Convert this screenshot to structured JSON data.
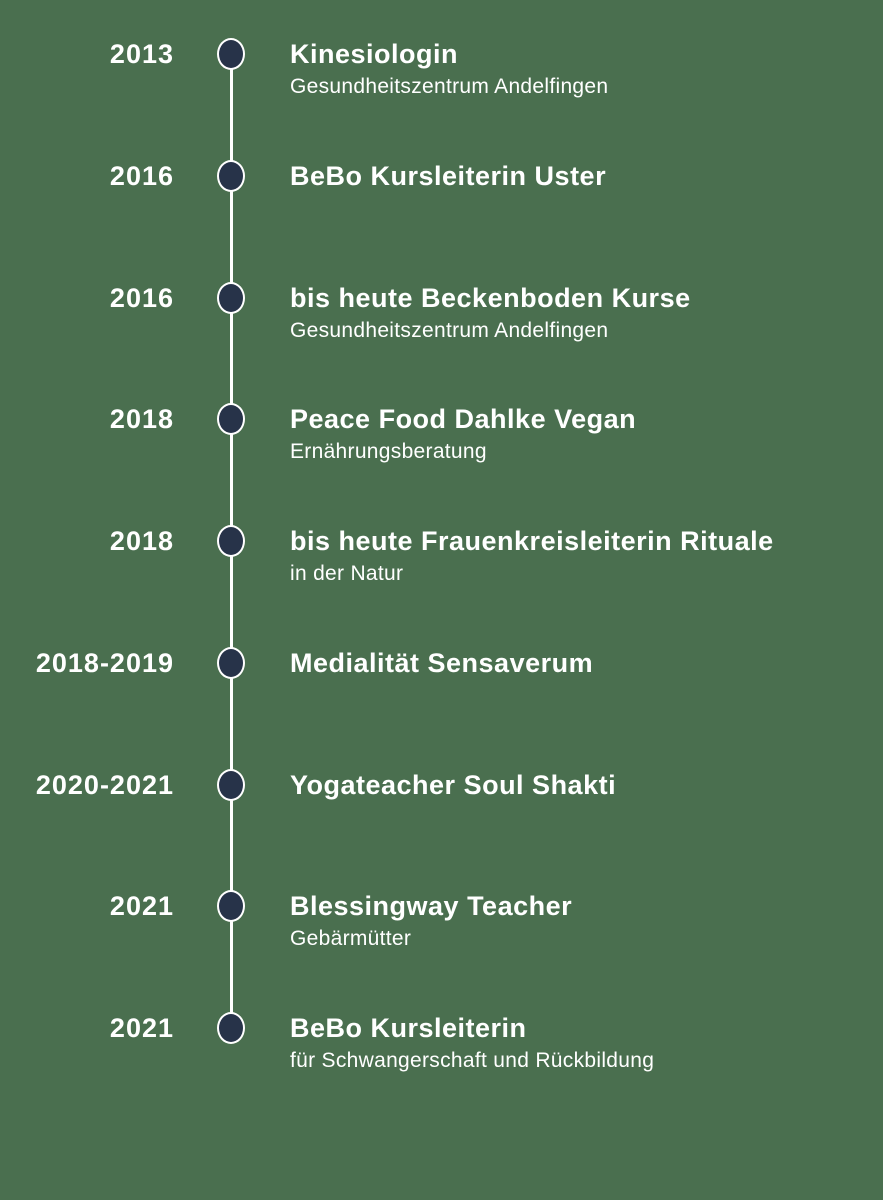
{
  "page": {
    "background_color": "#4a6f4f",
    "line_color": "#ffffff",
    "dot_fill_color": "#273349",
    "dot_border_color": "#ffffff",
    "text_color": "#ffffff"
  },
  "timeline": {
    "entries": [
      {
        "year": "2013",
        "title": "Kinesiologin",
        "subtitle": "Gesundheitszentrum Andelfingen"
      },
      {
        "year": "2016",
        "title": "BeBo Kursleiterin Uster",
        "subtitle": ""
      },
      {
        "year": "2016",
        "title": "bis heute Beckenboden Kurse",
        "subtitle": "Gesundheitszentrum Andelfingen"
      },
      {
        "year": "2018",
        "title": "Peace Food Dahlke Vegan",
        "subtitle": "Ernährungsberatung"
      },
      {
        "year": "2018",
        "title": "bis heute Frauenkreisleiterin Rituale",
        "subtitle": "in der Natur"
      },
      {
        "year": "2018-2019",
        "title": "Medialität Sensaverum",
        "subtitle": ""
      },
      {
        "year": "2020-2021",
        "title": "Yogateacher Soul Shakti",
        "subtitle": ""
      },
      {
        "year": "2021",
        "title": "Blessingway Teacher",
        "subtitle": "Gebärmütter"
      },
      {
        "year": "2021",
        "title": "BeBo Kursleiterin",
        "subtitle": "für Schwangerschaft und Rückbildung"
      }
    ]
  }
}
